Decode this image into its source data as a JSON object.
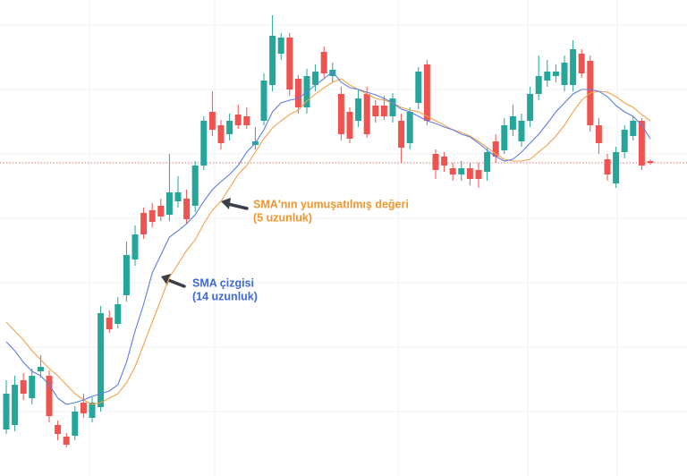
{
  "chart_data": {
    "type": "candlestick",
    "ylim": [
      0,
      532
    ],
    "up_color": "#26a69a",
    "down_color": "#ef5350",
    "open": [
      52,
      57,
      107,
      87,
      117,
      112,
      57,
      44,
      45,
      82,
      65,
      77,
      177,
      170,
      202,
      242,
      294,
      297,
      302,
      292,
      307,
      310,
      302,
      347,
      407,
      392,
      382,
      404,
      402,
      370,
      397,
      437,
      472,
      490,
      444,
      412,
      437,
      474,
      447,
      427,
      407,
      397,
      427,
      414,
      414,
      402,
      397,
      372,
      417,
      460,
      360,
      357,
      344,
      337,
      344,
      342,
      340,
      374,
      364,
      387,
      374,
      397,
      427,
      442,
      447,
      437,
      437,
      472,
      464,
      392,
      354,
      327,
      362,
      380,
      397,
      352
    ],
    "high": [
      107,
      112,
      115,
      120,
      135,
      118,
      62,
      48,
      78,
      92,
      88,
      190,
      185,
      200,
      262,
      280,
      300,
      305,
      310,
      360,
      335,
      320,
      352,
      402,
      430,
      398,
      405,
      415,
      412,
      390,
      450,
      515,
      495,
      495,
      448,
      455,
      460,
      480,
      462,
      435,
      412,
      432,
      435,
      420,
      425,
      428,
      405,
      412,
      457,
      465,
      365,
      362,
      350,
      352,
      350,
      350,
      367,
      382,
      400,
      415,
      405,
      435,
      470,
      465,
      460,
      470,
      487,
      477,
      470,
      400,
      360,
      368,
      392,
      402,
      400,
      354
    ],
    "low": [
      47,
      50,
      85,
      80,
      110,
      60,
      40,
      32,
      40,
      65,
      60,
      72,
      160,
      165,
      195,
      235,
      265,
      278,
      285,
      285,
      300,
      282,
      295,
      342,
      380,
      365,
      375,
      388,
      388,
      365,
      392,
      430,
      465,
      425,
      405,
      405,
      430,
      445,
      440,
      375,
      372,
      390,
      378,
      395,
      398,
      395,
      350,
      365,
      410,
      392,
      332,
      340,
      330,
      330,
      325,
      322,
      330,
      350,
      360,
      380,
      368,
      390,
      420,
      435,
      440,
      430,
      430,
      445,
      385,
      360,
      330,
      322,
      355,
      375,
      342,
      348
    ],
    "close": [
      92,
      102,
      92,
      112,
      122,
      67,
      47,
      35,
      72,
      70,
      82,
      182,
      164,
      192,
      247,
      270,
      270,
      284,
      290,
      317,
      317,
      287,
      347,
      397,
      387,
      372,
      397,
      392,
      392,
      374,
      442,
      492,
      490,
      432,
      412,
      447,
      452,
      450,
      454,
      382,
      377,
      422,
      382,
      402,
      402,
      422,
      367,
      407,
      452,
      397,
      342,
      347,
      337,
      344,
      332,
      332,
      362,
      357,
      392,
      402,
      397,
      427,
      447,
      452,
      452,
      462,
      477,
      450,
      392,
      372,
      337,
      362,
      387,
      397,
      347,
      350
    ],
    "series": [
      {
        "color": "#f5a04a",
        "values": [
          172,
          162,
          152,
          140,
          130,
          120,
          112,
          102,
          92,
          85,
          80,
          82,
          87,
          92,
          104,
          122,
          147,
          172,
          197,
          222,
          237,
          252,
          264,
          282,
          297,
          307,
          322,
          337,
          347,
          362,
          377,
          389,
          397,
          404,
          409,
          419,
          427,
          434,
          440,
          444,
          437,
          432,
          427,
          422,
          420,
          417,
          412,
          409,
          407,
          402,
          397,
          392,
          387,
          384,
          380,
          374,
          367,
          360,
          354,
          352,
          352,
          354,
          362,
          370,
          380,
          392,
          407,
          420,
          428,
          430,
          429,
          424,
          417,
          412,
          404,
          397
        ]
      },
      {
        "color": "#5b7fe0",
        "values": [
          150,
          140,
          127,
          117,
          112,
          102,
          87,
          80,
          82,
          85,
          89,
          92,
          95,
          102,
          127,
          162,
          192,
          227,
          247,
          267,
          274,
          282,
          292,
          307,
          320,
          329,
          337,
          347,
          362,
          372,
          387,
          407,
          417,
          420,
          422,
          429,
          437,
          444,
          452,
          440,
          434,
          432,
          429,
          426,
          422,
          417,
          410,
          407,
          402,
          397,
          394,
          390,
          387,
          382,
          379,
          372,
          364,
          357,
          352,
          354,
          362,
          372,
          382,
          394,
          407,
          417,
          427,
          432,
          432,
          430,
          424,
          414,
          407,
          402,
          392,
          377
        ]
      }
    ],
    "price_line": 350,
    "price_line_color": "#e57373",
    "annotations": [
      {
        "lines": [
          "SMA'nın yumuşatılmış değeri",
          "(5 uzunluk)"
        ],
        "color": "#f0962e"
      },
      {
        "lines": [
          "SMA çizgisi",
          "(14 uzunluk)"
        ],
        "color": "#3f68d8"
      }
    ]
  }
}
